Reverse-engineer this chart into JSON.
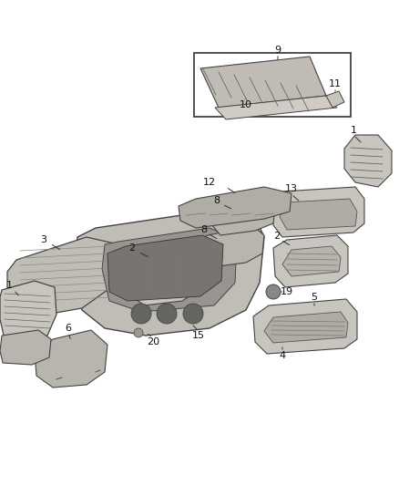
{
  "bg_color": "#ffffff",
  "figsize": [
    4.38,
    5.33
  ],
  "dpi": 100,
  "parts_color": "#c8c4be",
  "parts_color_dark": "#a8a49e",
  "edge_color": "#555555",
  "label_color": "#111111",
  "label_fontsize": 8.0
}
